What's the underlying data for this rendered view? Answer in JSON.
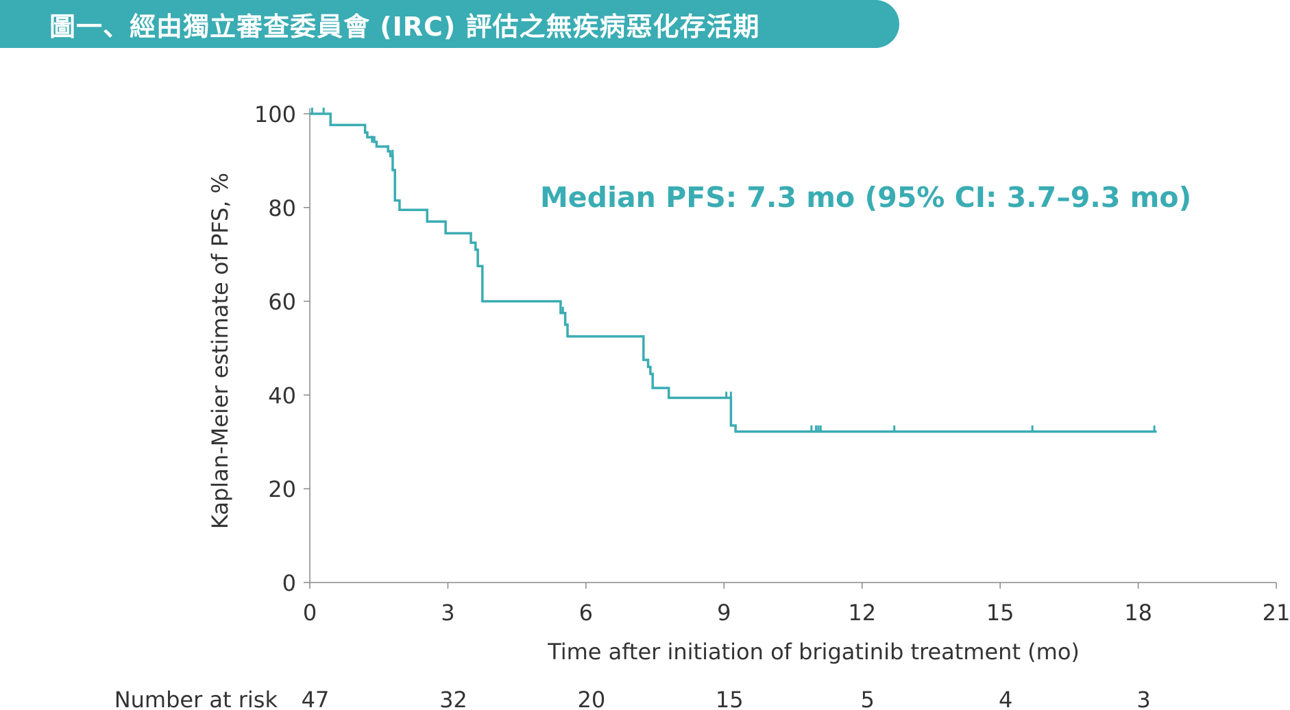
{
  "title": "圖一、經由獨立審查委員會 (IRC) 評估之無疾病惡化存活期",
  "colors": {
    "accent": "#3aacb3",
    "text": "#333333",
    "axis": "#888888"
  },
  "chart_data": {
    "type": "line",
    "step": true,
    "title": "",
    "xlabel": "Time after initiation of brigatinib treatment (mo)",
    "ylabel": "Kaplan-Meier estimate of PFS, %",
    "xlim": [
      0,
      21
    ],
    "ylim": [
      0,
      100
    ],
    "xticks": [
      0,
      3,
      6,
      9,
      12,
      15,
      18,
      21
    ],
    "yticks": [
      0,
      20,
      40,
      60,
      80,
      100
    ],
    "grid": false,
    "annotation": "Median PFS: 7.3 mo (95% CI: 3.7–9.3 mo)",
    "series": [
      {
        "color": "#3aacb3",
        "points": [
          [
            0,
            100
          ],
          [
            0.45,
            100
          ],
          [
            0.45,
            97.6
          ],
          [
            1.2,
            97.6
          ],
          [
            1.2,
            96
          ],
          [
            1.25,
            96
          ],
          [
            1.25,
            95
          ],
          [
            1.4,
            95
          ],
          [
            1.4,
            94
          ],
          [
            1.45,
            94
          ],
          [
            1.45,
            93
          ],
          [
            1.7,
            93
          ],
          [
            1.7,
            92
          ],
          [
            1.75,
            92
          ],
          [
            1.75,
            91
          ],
          [
            1.8,
            91
          ],
          [
            1.8,
            88
          ],
          [
            1.85,
            88
          ],
          [
            1.85,
            81.5
          ],
          [
            1.95,
            81.5
          ],
          [
            1.95,
            79.5
          ],
          [
            2.55,
            79.5
          ],
          [
            2.55,
            77
          ],
          [
            2.95,
            77
          ],
          [
            2.95,
            74.5
          ],
          [
            3.5,
            74.5
          ],
          [
            3.5,
            72.5
          ],
          [
            3.6,
            72.5
          ],
          [
            3.6,
            71
          ],
          [
            3.65,
            71
          ],
          [
            3.65,
            67.5
          ],
          [
            3.75,
            67.5
          ],
          [
            3.75,
            60
          ],
          [
            5.45,
            60
          ],
          [
            5.45,
            57.5
          ],
          [
            5.55,
            57.5
          ],
          [
            5.55,
            55
          ],
          [
            5.6,
            55
          ],
          [
            5.6,
            52.5
          ],
          [
            7.25,
            52.5
          ],
          [
            7.25,
            47.5
          ],
          [
            7.35,
            47.5
          ],
          [
            7.35,
            46
          ],
          [
            7.4,
            46
          ],
          [
            7.4,
            44.5
          ],
          [
            7.45,
            44.5
          ],
          [
            7.45,
            41.5
          ],
          [
            7.8,
            41.5
          ],
          [
            7.8,
            39.4
          ],
          [
            9.15,
            39.4
          ],
          [
            9.15,
            33.5
          ],
          [
            9.25,
            33.5
          ],
          [
            9.25,
            32.2
          ],
          [
            18.4,
            32.2
          ]
        ],
        "censors": [
          [
            0.05,
            100
          ],
          [
            0.3,
            100
          ],
          [
            1.35,
            94
          ],
          [
            1.7,
            92
          ],
          [
            1.8,
            91
          ],
          [
            3.6,
            71
          ],
          [
            5.5,
            57.5
          ],
          [
            9.05,
            39.4
          ],
          [
            9.15,
            39.4
          ],
          [
            10.9,
            32.2
          ],
          [
            11.0,
            32.2
          ],
          [
            11.05,
            32.2
          ],
          [
            11.1,
            32.2
          ],
          [
            12.7,
            32.2
          ],
          [
            15.7,
            32.2
          ],
          [
            18.35,
            32.2
          ]
        ]
      }
    ],
    "risk_table": {
      "label": "Number at risk",
      "times": [
        0,
        3,
        6,
        9,
        12,
        15,
        18
      ],
      "values": [
        "47",
        "32",
        "20",
        "15",
        "5",
        "4",
        "3"
      ]
    }
  }
}
